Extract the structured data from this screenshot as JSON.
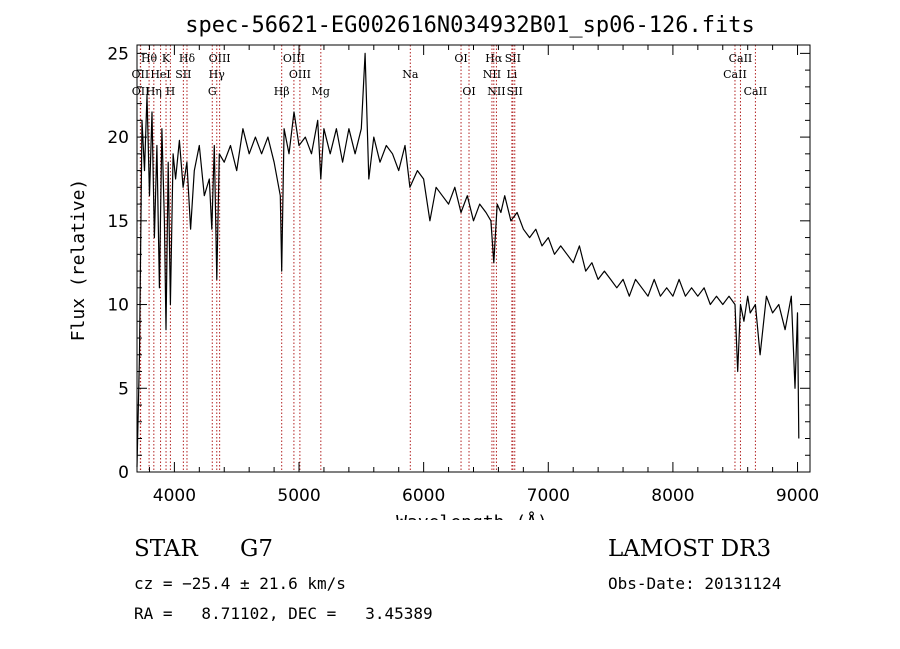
{
  "chart_data": {
    "type": "line",
    "title": "spec-56621-EG002616N034932B01_sp06-126.fits",
    "xlabel": "Wavelength (Å)",
    "ylabel": "Flux (relative)",
    "xlim": [
      3700,
      9100
    ],
    "ylim": [
      0,
      25.5
    ],
    "xticks": [
      4000,
      5000,
      6000,
      7000,
      8000,
      9000
    ],
    "yticks": [
      0,
      5,
      10,
      15,
      20,
      25
    ],
    "grid": false,
    "series": [
      {
        "name": "flux",
        "x": [
          3700,
          3720,
          3740,
          3760,
          3780,
          3800,
          3820,
          3840,
          3860,
          3880,
          3900,
          3920,
          3933,
          3950,
          3968,
          3990,
          4010,
          4040,
          4070,
          4100,
          4130,
          4160,
          4200,
          4240,
          4280,
          4300,
          4320,
          4340,
          4360,
          4400,
          4450,
          4500,
          4550,
          4600,
          4650,
          4700,
          4750,
          4800,
          4850,
          4861,
          4880,
          4920,
          4960,
          5000,
          5050,
          5100,
          5150,
          5175,
          5200,
          5250,
          5300,
          5350,
          5400,
          5450,
          5500,
          5530,
          5560,
          5600,
          5650,
          5700,
          5750,
          5800,
          5850,
          5890,
          5950,
          6000,
          6050,
          6100,
          6150,
          6200,
          6250,
          6300,
          6350,
          6400,
          6450,
          6500,
          6540,
          6563,
          6590,
          6620,
          6650,
          6700,
          6750,
          6800,
          6850,
          6900,
          6950,
          7000,
          7050,
          7100,
          7150,
          7200,
          7250,
          7300,
          7350,
          7400,
          7450,
          7500,
          7550,
          7600,
          7650,
          7700,
          7750,
          7800,
          7850,
          7900,
          7950,
          8000,
          8050,
          8100,
          8150,
          8200,
          8250,
          8300,
          8350,
          8400,
          8450,
          8498,
          8520,
          8542,
          8570,
          8600,
          8620,
          8662,
          8700,
          8750,
          8800,
          8850,
          8900,
          8950,
          8980,
          9000,
          9010
        ],
        "values": [
          0.3,
          7.0,
          21.0,
          18.0,
          22.5,
          16.5,
          21.5,
          14.0,
          19.5,
          11.0,
          20.5,
          15.0,
          8.5,
          18.5,
          10.0,
          19.0,
          17.5,
          19.8,
          17.0,
          18.5,
          14.5,
          18.0,
          19.5,
          16.5,
          17.5,
          14.5,
          19.5,
          11.5,
          19.0,
          18.5,
          19.5,
          18.0,
          20.5,
          19.0,
          20.0,
          19.0,
          20.0,
          18.5,
          16.5,
          12.0,
          20.5,
          19.0,
          21.5,
          19.5,
          20.0,
          19.0,
          21.0,
          17.5,
          20.5,
          19.0,
          20.5,
          18.5,
          20.5,
          19.0,
          20.5,
          25.0,
          17.5,
          20.0,
          18.5,
          19.5,
          19.0,
          18.0,
          19.5,
          17.0,
          18.0,
          17.5,
          15.0,
          17.0,
          16.5,
          16.0,
          17.0,
          15.5,
          16.5,
          15.0,
          16.0,
          15.5,
          15.0,
          12.5,
          16.0,
          15.5,
          16.5,
          15.0,
          15.5,
          14.5,
          14.0,
          14.5,
          13.5,
          14.0,
          13.0,
          13.5,
          13.0,
          12.5,
          13.5,
          12.0,
          12.5,
          11.5,
          12.0,
          11.5,
          11.0,
          11.5,
          10.5,
          11.5,
          11.0,
          10.5,
          11.5,
          10.5,
          11.0,
          10.5,
          11.5,
          10.5,
          11.0,
          10.5,
          11.0,
          10.0,
          10.5,
          10.0,
          10.5,
          10.0,
          6.0,
          10.0,
          9.0,
          10.5,
          9.5,
          10.0,
          7.0,
          10.5,
          9.5,
          10.0,
          8.5,
          10.5,
          5.0,
          9.5,
          2.0
        ]
      }
    ],
    "lines": [
      {
        "label": "Hθ",
        "wave": 3797,
        "row": 1
      },
      {
        "label": "K",
        "wave": 3933,
        "row": 1
      },
      {
        "label": "Hδ",
        "wave": 4101,
        "row": 1
      },
      {
        "label": "OIII",
        "wave": 4363,
        "row": 1
      },
      {
        "label": "OIII",
        "wave": 4959,
        "row": 1
      },
      {
        "label": "OI",
        "wave": 6300,
        "row": 1
      },
      {
        "label": "Hα",
        "wave": 6563,
        "row": 1
      },
      {
        "label": "SII",
        "wave": 6716,
        "row": 1
      },
      {
        "label": "CaII",
        "wave": 8542,
        "row": 1
      },
      {
        "label": "OII",
        "wave": 3727,
        "row": 2
      },
      {
        "label": "HeI",
        "wave": 3889,
        "row": 2
      },
      {
        "label": "SII",
        "wave": 4072,
        "row": 2
      },
      {
        "label": "Hγ",
        "wave": 4340,
        "row": 2
      },
      {
        "label": "OIII",
        "wave": 5007,
        "row": 2
      },
      {
        "label": "Na",
        "wave": 5893,
        "row": 2
      },
      {
        "label": "NII",
        "wave": 6548,
        "row": 2
      },
      {
        "label": "Li",
        "wave": 6708,
        "row": 2
      },
      {
        "label": "CaII",
        "wave": 8498,
        "row": 2
      },
      {
        "label": "OII",
        "wave": 3729,
        "row": 3
      },
      {
        "label": "Hη",
        "wave": 3835,
        "row": 3
      },
      {
        "label": "H",
        "wave": 3968,
        "row": 3
      },
      {
        "label": "G",
        "wave": 4304,
        "row": 3
      },
      {
        "label": "Hβ",
        "wave": 4861,
        "row": 3
      },
      {
        "label": "Mg",
        "wave": 5175,
        "row": 3
      },
      {
        "label": "OI",
        "wave": 6364,
        "row": 3
      },
      {
        "label": "NII",
        "wave": 6584,
        "row": 3
      },
      {
        "label": "SII",
        "wave": 6731,
        "row": 3
      },
      {
        "label": "CaII",
        "wave": 8662,
        "row": 3
      }
    ]
  },
  "info": {
    "object_class": "STAR",
    "subclass": "G7",
    "survey": "LAMOST DR3",
    "redshift": "cz = −25.4 ± 21.6 km/s",
    "obs_date": "Obs-Date: 20131124",
    "coords": "RA =   8.71102, DEC =   3.45389"
  },
  "colors": {
    "axis": "#000000",
    "flux": "#000000",
    "line_marker": "#b22222"
  }
}
